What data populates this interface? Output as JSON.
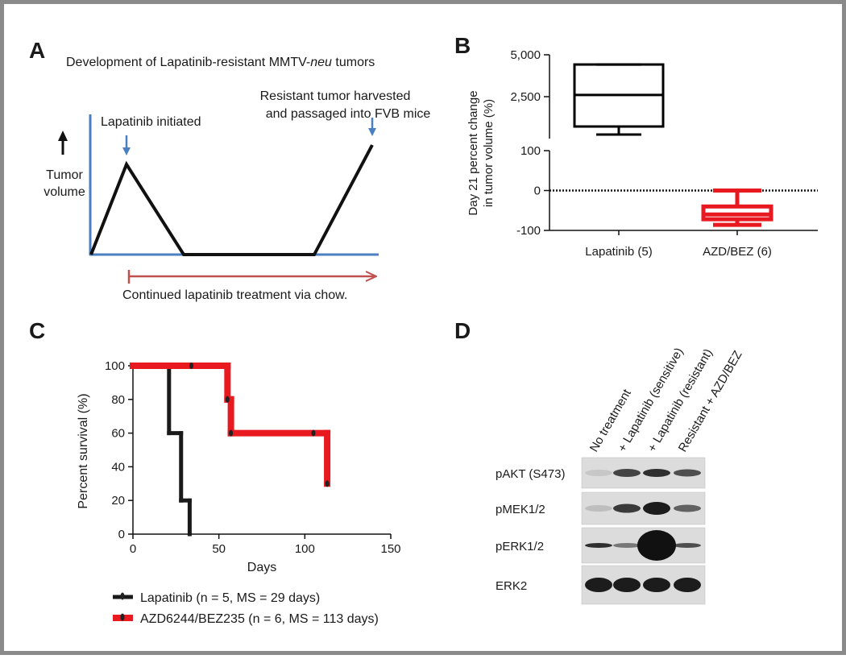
{
  "panel_labels": {
    "a": "A",
    "b": "B",
    "c": "C",
    "d": "D"
  },
  "diagram": {
    "title_start": "Development of Lapatinib-resistant MMTV-",
    "title_italic": "neu",
    "title_end": " tumors",
    "y_label_lines": [
      "Tumor",
      "volume"
    ],
    "start_label": "Lapatinib initiated",
    "end_label_lines": [
      "Resistant tumor harvested",
      "and passaged into FVB mice"
    ],
    "treatment_label": "Continued lapatinib treatment via chow."
  },
  "chart_data": [
    {
      "type": "box",
      "ylabel_lines": [
        "Day 21 percent change",
        "in tumor volume (%)"
      ],
      "categories": [
        "Lapatinib (5)",
        "AZD/BEZ (6)"
      ],
      "colors": [
        "#000000",
        "#e8191f"
      ],
      "boxes": [
        {
          "min": 240,
          "q1": 720,
          "median": 2600,
          "q3": 4420,
          "max": 4420
        },
        {
          "min": -86,
          "q1": -72,
          "median": -60,
          "q3": -40,
          "max": 0
        }
      ],
      "y_segments": [
        {
          "ylim": [
            -100,
            100
          ],
          "yticks": [
            -100,
            0,
            100
          ]
        },
        {
          "ylim": [
            0,
            5000
          ],
          "yticks": [
            {
              "value": 2500,
              "label": "2,500"
            },
            {
              "value": 5000,
              "label": "5,000"
            }
          ]
        }
      ],
      "reference_line": 0
    },
    {
      "type": "step",
      "xlabel": "Days",
      "ylabel": "Percent survival (%)",
      "xlim": [
        0,
        150
      ],
      "xticks": [
        0,
        50,
        100,
        150
      ],
      "ylim": [
        0,
        100
      ],
      "yticks": [
        0,
        20,
        40,
        60,
        80,
        100
      ],
      "series": [
        {
          "name": "Lapatinib (n = 5, MS = 29 days)",
          "color": "#1a1a1a",
          "x": [
            0,
            21,
            28,
            33
          ],
          "values": [
            100,
            60,
            20,
            0
          ]
        },
        {
          "name": "AZD6244/BEZ235 (n = 6, MS = 113 days)",
          "color": "#e8191f",
          "x": [
            0,
            55,
            57,
            113
          ],
          "values": [
            100,
            80,
            60,
            30
          ],
          "censored_x": [
            34,
            55,
            57,
            105,
            113
          ],
          "censored_values": [
            100,
            80,
            60,
            60,
            30
          ]
        }
      ]
    }
  ],
  "blot": {
    "lanes": [
      "No treatment",
      "+ Lapatinib (sensitive)",
      "+ Lapatinib (resistant)",
      "Resistant + AZD/BEZ"
    ],
    "rows": [
      "pAKT (S473)",
      "pMEK1/2",
      "pERK1/2",
      "ERK2"
    ]
  }
}
